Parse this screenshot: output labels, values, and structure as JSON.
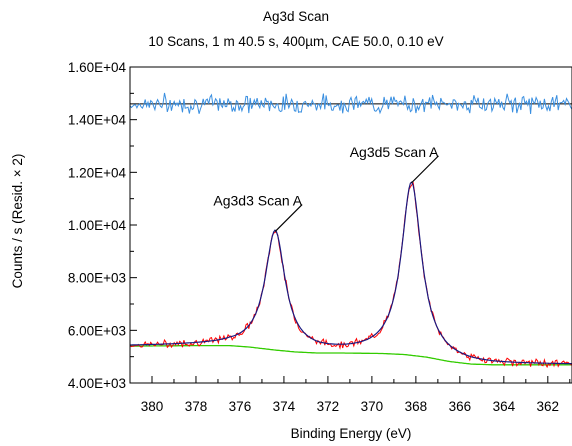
{
  "chart_data": {
    "type": "line",
    "title": "Ag3d Scan",
    "subtitle": "10 Scans,  1 m 40.5 s,  400µm,  CAE 50.0,  0.10 eV",
    "xlabel": "Binding Energy (eV)",
    "ylabel": "Counts / s  (Resid. × 2)",
    "x_reversed": true,
    "xlim": [
      381.0,
      360.9
    ],
    "ylim": [
      4000,
      16000
    ],
    "x_ticks": [
      380,
      378,
      376,
      374,
      372,
      370,
      368,
      366,
      364,
      362
    ],
    "y_ticks": [
      4000,
      6000,
      8000,
      10000,
      12000,
      14000,
      16000
    ],
    "y_tick_labels": [
      "4.00E+03",
      "6.00E+03",
      "8.00E+03",
      "1.00E+04",
      "1.20E+04",
      "1.40E+04",
      "1.60E+04"
    ],
    "residual_baseline": 14600,
    "background": {
      "color": "#33cc00",
      "x": [
        381.0,
        378.0,
        376.5,
        375.5,
        374.5,
        373.5,
        372.5,
        371.5,
        370.5,
        369.5,
        368.5,
        367.5,
        366.5,
        365.5,
        364.5,
        363.5,
        362.5,
        361.0
      ],
      "y": [
        5400,
        5420,
        5420,
        5360,
        5260,
        5180,
        5140,
        5140,
        5130,
        5120,
        5080,
        4980,
        4820,
        4720,
        4690,
        4690,
        4690,
        4690
      ]
    },
    "peaks": [
      {
        "name": "Ag3d3 Scan A",
        "center": 374.4,
        "height": 9750,
        "width": 0.55
      },
      {
        "name": "Ag3d5 Scan A",
        "center": 368.2,
        "height": 11600,
        "width": 0.55
      }
    ],
    "series_colors": {
      "data": "#ff0000",
      "envelope": "#1a1a80",
      "residual": "#3a8fe0",
      "residual_baseline": "#000000"
    },
    "annotations": [
      {
        "text": "Ag3d3 Scan A",
        "x": 374.4,
        "y": 9750
      },
      {
        "text": "Ag3d5 Scan A",
        "x": 368.2,
        "y": 11600
      }
    ]
  }
}
